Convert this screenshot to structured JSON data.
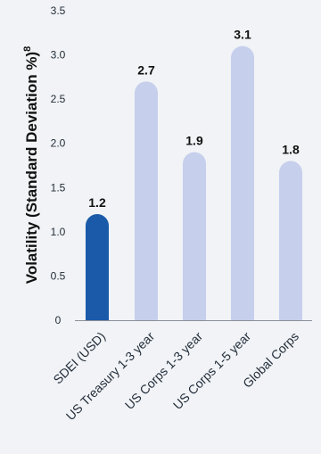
{
  "chart_data": {
    "type": "bar",
    "title": "",
    "xlabel": "",
    "ylabel": "Volatility (Standard Deviation %)",
    "ylabel_superscript": "8",
    "categories": [
      "SDEI (USD)",
      "US Treasury 1-3 year",
      "US Corps 1-3 year",
      "US Corps 1-5 year",
      "Global Corps"
    ],
    "values": [
      1.2,
      2.7,
      1.9,
      3.1,
      1.8
    ],
    "value_labels": [
      "1.2",
      "2.7",
      "1.9",
      "3.1",
      "1.8"
    ],
    "yticks": [
      "0",
      "0.5",
      "1.0",
      "1.5",
      "2.0",
      "2.5",
      "3.0",
      "3.5"
    ],
    "ylim": [
      0,
      3.5
    ],
    "grid": false,
    "colors": [
      "#1a5aa8",
      "#c6cfec",
      "#c6cfec",
      "#c6cfec",
      "#c6cfec"
    ],
    "axis_color": "#8a8f99"
  }
}
